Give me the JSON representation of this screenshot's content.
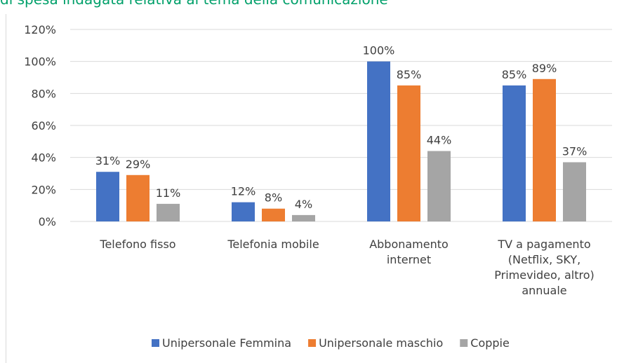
{
  "chart_data": {
    "type": "bar",
    "title": "di spesa indagata relativa al tema della comunicazione",
    "categories": [
      "Telefono fisso",
      "Telefonia mobile",
      "Abbonamento internet",
      "TV a pagamento (Netflix, SKY, Primevideo, altro) annuale"
    ],
    "series": [
      {
        "name": "Unipersonale Femmina",
        "color": "#4472c4",
        "values": [
          31,
          12,
          100,
          85
        ],
        "value_labels": [
          "31%",
          "12%",
          "100%",
          "85%"
        ]
      },
      {
        "name": "Unipersonale maschio",
        "color": "#ed7d31",
        "values": [
          29,
          8,
          85,
          89
        ],
        "value_labels": [
          "29%",
          "8%",
          "85%",
          "89%"
        ]
      },
      {
        "name": "Coppie",
        "color": "#a5a5a5",
        "values": [
          11,
          4,
          44,
          37
        ],
        "value_labels": [
          "11%",
          "4%",
          "44%",
          "37%"
        ]
      }
    ],
    "ylim": [
      0,
      120
    ],
    "yticks": [
      {
        "value": 0,
        "label": "0%"
      },
      {
        "value": 20,
        "label": "20%"
      },
      {
        "value": 40,
        "label": "40%"
      },
      {
        "value": 60,
        "label": "60%"
      },
      {
        "value": 80,
        "label": "80%"
      },
      {
        "value": 100,
        "label": "100%"
      },
      {
        "value": 120,
        "label": "120%"
      }
    ],
    "grid": true,
    "legend": "bottom"
  }
}
